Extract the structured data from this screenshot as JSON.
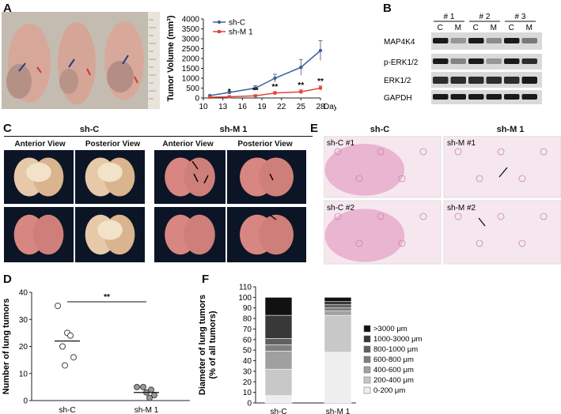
{
  "panels": {
    "A": "A",
    "B": "B",
    "C": "C",
    "D": "D",
    "E": "E",
    "F": "F"
  },
  "colors": {
    "shC": "#3a5f9e",
    "shM1": "#e0463a",
    "wb_bg": "#d9d9d9",
    "band": "#1a1a1a",
    "lung": "#d98a86",
    "histo": "#e6a9c8"
  },
  "panel_c": {
    "group1_title": "sh-C",
    "group2_title": "sh-M 1",
    "views": [
      "Anterior View",
      "Posterior View",
      "Anterior View",
      "Posterior View"
    ]
  },
  "panel_e": {
    "col1_title": "sh-C",
    "col2_title": "sh-M 1",
    "tiles": [
      "sh-C #1",
      "sh-M #1",
      "sh-C #2",
      "sh-M #2"
    ]
  },
  "panel_b": {
    "groups": [
      "# 1",
      "# 2",
      "# 3"
    ],
    "lanes": [
      "C",
      "M",
      "C",
      "M",
      "C",
      "M"
    ],
    "rows": [
      "MAP4K4",
      "p-ERK1/2",
      "ERK1/2",
      "GAPDH"
    ]
  },
  "chart_data": [
    {
      "type": "line",
      "panel": "A",
      "xlabel": "Day",
      "ylabel": "Tumor Volume (mm³)",
      "x": [
        11,
        14,
        18,
        21,
        25,
        28
      ],
      "xticks": [
        "10",
        "13",
        "16",
        "19",
        "22",
        "25",
        "28"
      ],
      "yticks": [
        "0",
        "500",
        "1000",
        "1500",
        "2000",
        "2500",
        "3000",
        "3500",
        "4000"
      ],
      "ylim": [
        0,
        4000
      ],
      "xlim": [
        10,
        28
      ],
      "series": [
        {
          "name": "sh-C",
          "values": [
            120,
            280,
            500,
            1000,
            1550,
            2400
          ],
          "errors": [
            30,
            60,
            120,
            200,
            400,
            500
          ]
        },
        {
          "name": "sh-M 1",
          "values": [
            40,
            60,
            110,
            250,
            310,
            500
          ],
          "errors": [
            15,
            20,
            40,
            80,
            100,
            110
          ]
        }
      ],
      "significance": [
        {
          "x": 14,
          "label": "*"
        },
        {
          "x": 18,
          "label": "**"
        },
        {
          "x": 21,
          "label": "**"
        },
        {
          "x": 25,
          "label": "**"
        },
        {
          "x": 28,
          "label": "**"
        }
      ]
    },
    {
      "type": "scatter",
      "panel": "D",
      "ylabel": "Number of lung tumors",
      "categories": [
        "sh-C",
        "sh-M 1"
      ],
      "ylim": [
        0,
        40
      ],
      "yticks": [
        "0",
        "10",
        "20",
        "30",
        "40"
      ],
      "series": [
        {
          "name": "sh-C",
          "values": [
            35,
            25,
            24,
            20,
            16,
            13
          ],
          "mean": 22
        },
        {
          "name": "sh-M 1",
          "values": [
            5,
            5,
            4,
            3,
            2,
            1
          ],
          "mean": 3
        }
      ],
      "significance": "**"
    },
    {
      "type": "bar",
      "panel": "F",
      "ylabel_line1": "Diameter of lung tumors",
      "ylabel_line2": "(% of all tumors)",
      "categories": [
        "sh-C",
        "sh-M 1"
      ],
      "ylim": [
        0,
        110
      ],
      "yticks": [
        "0",
        "10",
        "20",
        "30",
        "40",
        "50",
        "60",
        "70",
        "80",
        "90",
        "100",
        "110"
      ],
      "series": [
        {
          "name": "0-200 μm",
          "color": "#eeeeee",
          "values": [
            7,
            48
          ]
        },
        {
          "name": "200-400 μm",
          "color": "#c8c8c8",
          "values": [
            25,
            35
          ]
        },
        {
          "name": "400-600 μm",
          "color": "#a0a0a0",
          "values": [
            17,
            4
          ]
        },
        {
          "name": "600-800 μm",
          "color": "#808080",
          "values": [
            6,
            3
          ]
        },
        {
          "name": "800-1000 μm",
          "color": "#606060",
          "values": [
            6,
            3
          ]
        },
        {
          "name": "1000-3000 μm",
          "color": "#383838",
          "values": [
            22,
            3
          ]
        },
        {
          "name": ">3000 μm",
          "color": "#111111",
          "values": [
            17,
            4
          ]
        }
      ]
    }
  ]
}
